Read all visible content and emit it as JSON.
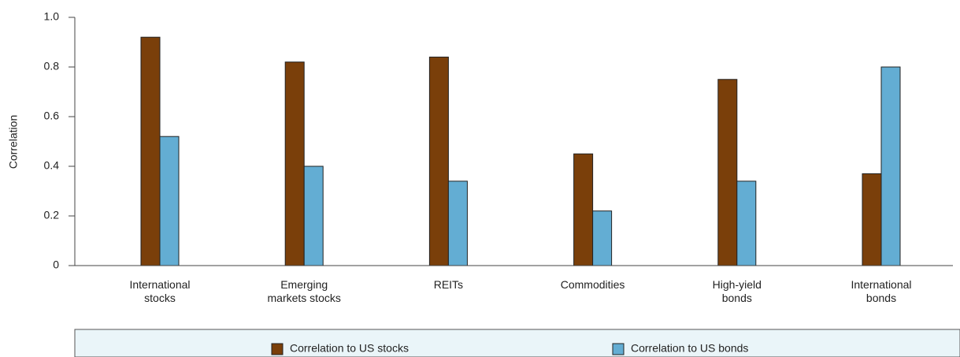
{
  "chart_data": {
    "type": "bar",
    "categories": [
      "International stocks",
      "Emerging markets stocks",
      "REITs",
      "Commodities",
      "High-yield bonds",
      "International bonds"
    ],
    "series": [
      {
        "name": "Correlation to US stocks",
        "color": "#7a3f0a",
        "values": [
          0.92,
          0.82,
          0.84,
          0.45,
          0.75,
          0.37
        ]
      },
      {
        "name": "Correlation to US bonds",
        "color": "#63add3",
        "values": [
          0.52,
          0.4,
          0.34,
          0.22,
          0.34,
          0.8
        ]
      }
    ],
    "ylabel": "Correlation",
    "ylim": [
      0,
      1
    ],
    "yticks": [
      0,
      0.2,
      0.4,
      0.6,
      0.8,
      {
        "value": 1,
        "label": "1.0"
      }
    ],
    "legend": "bottom"
  }
}
